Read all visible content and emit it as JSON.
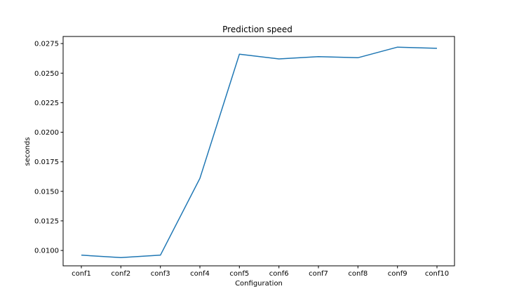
{
  "chart_data": {
    "type": "line",
    "title": "Prediction speed",
    "xlabel": "Configuration",
    "ylabel": "seconds",
    "categories": [
      "conf1",
      "conf2",
      "conf3",
      "conf4",
      "conf5",
      "conf6",
      "conf7",
      "conf8",
      "conf9",
      "conf10"
    ],
    "values": [
      0.0096,
      0.0094,
      0.0096,
      0.0161,
      0.0266,
      0.0262,
      0.0264,
      0.0263,
      0.0272,
      0.0271
    ],
    "ylim": [
      0.0087,
      0.0281
    ],
    "yticks": [
      "0.0100",
      "0.0125",
      "0.0150",
      "0.0175",
      "0.0200",
      "0.0225",
      "0.0250",
      "0.0275"
    ],
    "grid": false,
    "line_color": "#1f77b4"
  }
}
